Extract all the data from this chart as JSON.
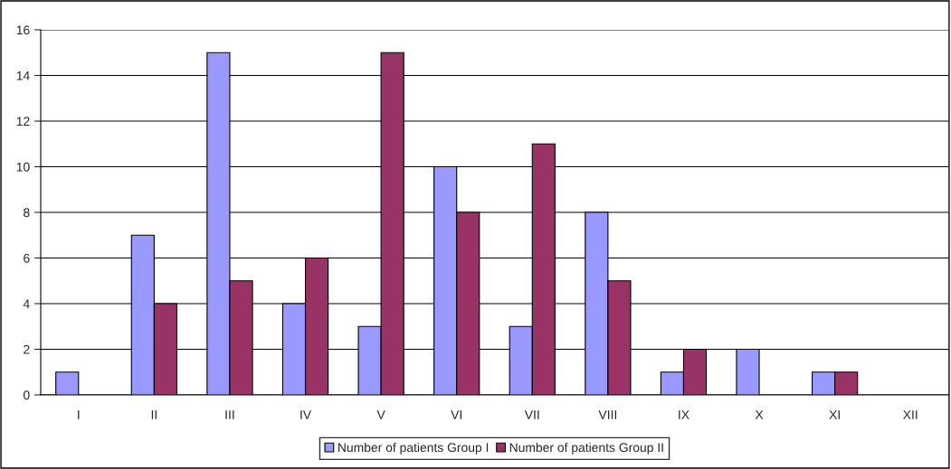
{
  "chart_data": {
    "type": "bar",
    "categories": [
      "I",
      "II",
      "III",
      "IV",
      "V",
      "VI",
      "VII",
      "VIII",
      "IX",
      "X",
      "XI",
      "XII"
    ],
    "series": [
      {
        "name": "Number of patients Group I",
        "color": "#9999ff",
        "values": [
          1,
          7,
          15,
          4,
          3,
          10,
          3,
          8,
          1,
          2,
          1,
          0
        ]
      },
      {
        "name": "Number of patients Group II",
        "color": "#993366",
        "values": [
          0,
          4,
          5,
          6,
          15,
          8,
          11,
          5,
          2,
          0,
          1,
          0
        ]
      }
    ],
    "ylim": [
      0,
      16
    ],
    "yticks": [
      0,
      2,
      4,
      6,
      8,
      10,
      12,
      14,
      16
    ],
    "grid": "y",
    "legend": "bottom"
  }
}
